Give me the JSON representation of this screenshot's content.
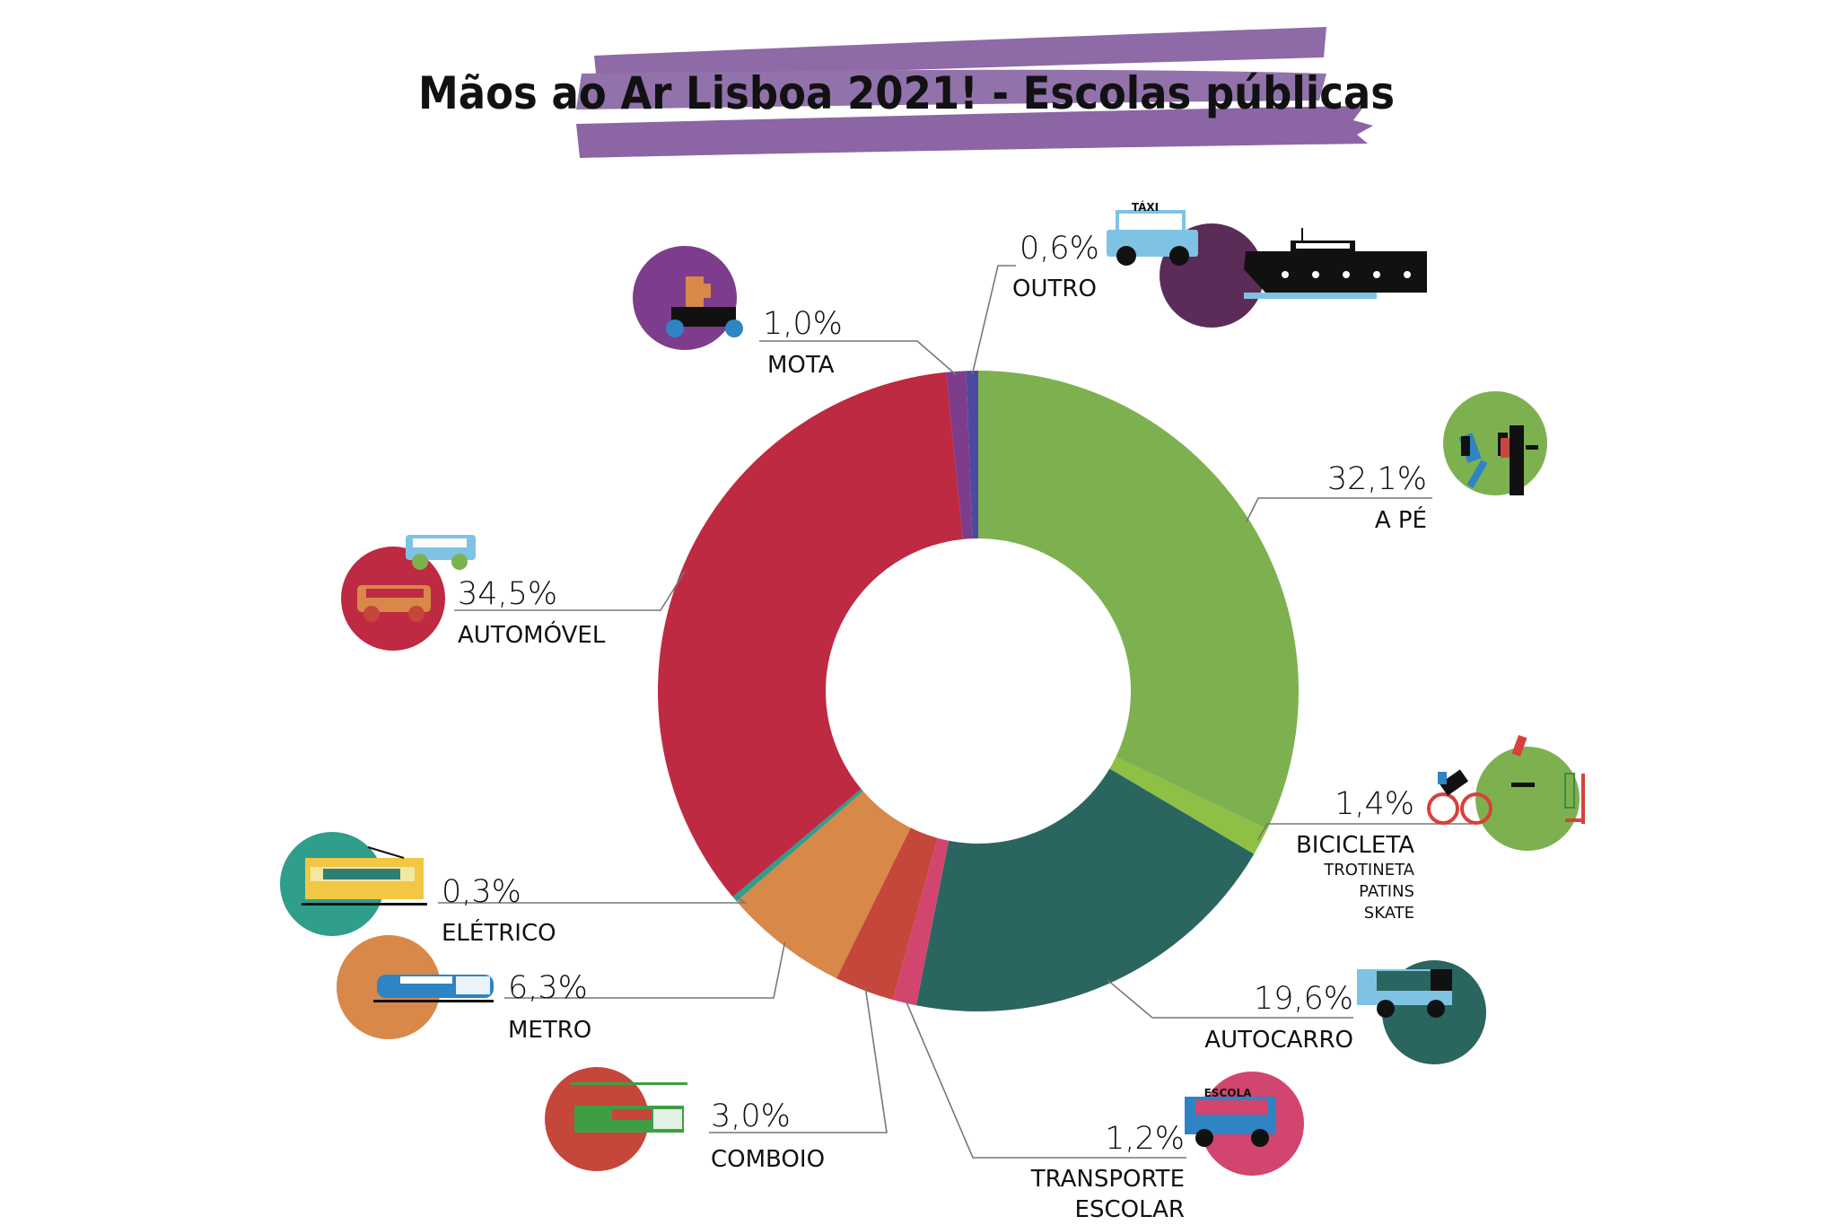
{
  "title": "Mãos ao Ar Lisboa 2021! - Escolas públicas",
  "chart_data": {
    "type": "pie",
    "variant": "donut",
    "title": "Mãos ao Ar Lisboa 2021! - Escolas públicas",
    "slices": [
      {
        "name": "A PÉ",
        "value": 32.1,
        "display": "32,1%",
        "color": "#7db14f",
        "icon": "walking-students-icon"
      },
      {
        "name": "BICICLETA",
        "sublabels": [
          "TROTINETA",
          "PATINS",
          "SKATE"
        ],
        "value": 1.4,
        "display": "1,4%",
        "color": "#8dc045",
        "icon": "bicycle-scooter-skate-icon"
      },
      {
        "name": "AUTOCARRO",
        "value": 19.6,
        "display": "19,6%",
        "color": "#2b6560",
        "icon": "bus-icon"
      },
      {
        "name": "TRANSPORTE ESCOLAR",
        "lines": [
          "TRANSPORTE",
          "ESCOLAR"
        ],
        "value": 1.2,
        "display": "1,2%",
        "color": "#d2456f",
        "icon": "school-bus-icon",
        "icon_text": "ESCOLA"
      },
      {
        "name": "COMBOIO",
        "value": 3.0,
        "display": "3,0%",
        "color": "#c5463b",
        "icon": "train-icon"
      },
      {
        "name": "METRO",
        "value": 6.3,
        "display": "6,3%",
        "color": "#d88849",
        "icon": "metro-icon"
      },
      {
        "name": "ELÉTRICO",
        "value": 0.3,
        "display": "0,3%",
        "color": "#2f9e8a",
        "icon": "tram-icon"
      },
      {
        "name": "AUTOMÓVEL",
        "value": 34.5,
        "display": "34,5%",
        "color": "#be2a42",
        "icon": "car-icon"
      },
      {
        "name": "MOTA",
        "value": 1.0,
        "display": "1,0%",
        "color": "#7d3d8c",
        "icon": "motorcycle-icon"
      },
      {
        "name": "OUTRO",
        "value": 0.6,
        "display": "0,6%",
        "color": "#4b4aa0",
        "icon": "taxi-boat-icon",
        "icon_text": "TÁXI"
      }
    ]
  }
}
